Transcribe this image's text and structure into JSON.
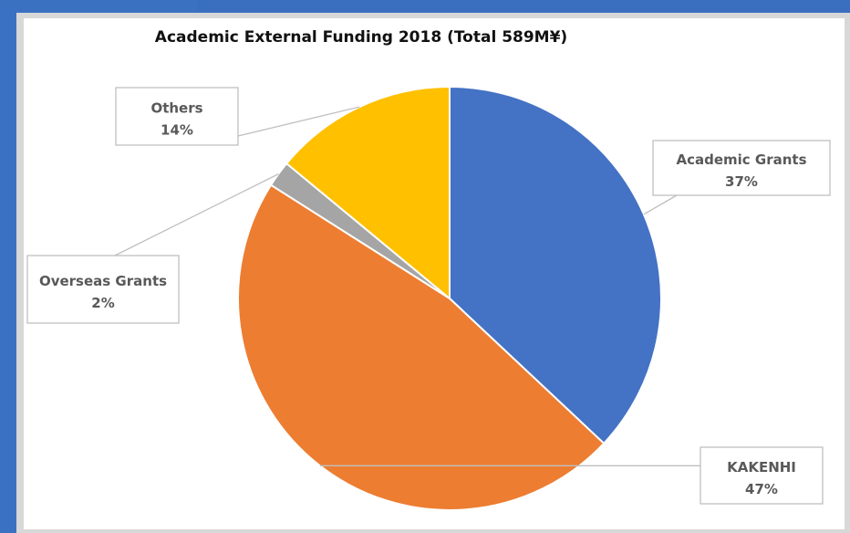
{
  "chart_data": {
    "type": "pie",
    "title": "Academic External Funding 2018 (Total 589M¥)",
    "slices": [
      {
        "label": "Academic Grants",
        "value": 37,
        "color": "#4472c4"
      },
      {
        "label": "KAKENHI",
        "value": 47,
        "color": "#ed7d31"
      },
      {
        "label": "Overseas Grants",
        "value": 2,
        "color": "#a5a5a5"
      },
      {
        "label": "Others",
        "value": 14,
        "color": "#ffc000"
      }
    ],
    "percent_labels": [
      "37%",
      "47%",
      "2%",
      "14%"
    ],
    "start_angle_deg": 0,
    "direction": "clockwise"
  }
}
